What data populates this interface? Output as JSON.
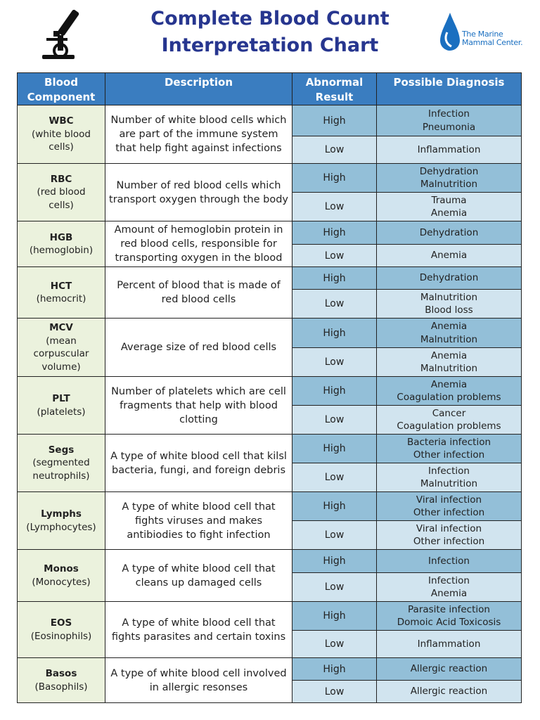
{
  "header": {
    "title_lines": [
      "Complete Blood Count",
      "Interpretation Chart"
    ],
    "logo_lines": [
      "The Marine",
      "Mammal Center."
    ]
  },
  "table": {
    "columns": [
      "Blood Component",
      "Description",
      "Abnormal Result",
      "Possible Diagnosis"
    ],
    "rows": [
      {
        "name": "WBC",
        "detail": "(white blood cells)",
        "description": "Number of white blood cells which are part of the immune system that help fight against infections",
        "results": [
          {
            "result": "High",
            "diagnosis": [
              "Infection",
              "Pneumonia"
            ]
          },
          {
            "result": "Low",
            "diagnosis": [
              "Inflammation"
            ]
          }
        ]
      },
      {
        "name": "RBC",
        "detail": "(red blood cells)",
        "description": "Number of red blood cells which transport oxygen through the body",
        "results": [
          {
            "result": "High",
            "diagnosis": [
              "Dehydration",
              "Malnutrition"
            ]
          },
          {
            "result": "Low",
            "diagnosis": [
              "Trauma",
              "Anemia"
            ]
          }
        ]
      },
      {
        "name": "HGB",
        "detail": "(hemoglobin)",
        "description": "Amount of hemoglobin protein in red blood cells, responsible for transporting oxygen in the blood",
        "results": [
          {
            "result": "High",
            "diagnosis": [
              "Dehydration"
            ]
          },
          {
            "result": "Low",
            "diagnosis": [
              "Anemia"
            ]
          }
        ]
      },
      {
        "name": "HCT",
        "detail": "(hemocrit)",
        "description": "Percent of blood that is made of red blood cells",
        "results": [
          {
            "result": "High",
            "diagnosis": [
              "Dehydration"
            ]
          },
          {
            "result": "Low",
            "diagnosis": [
              "Malnutrition",
              "Blood loss"
            ]
          }
        ]
      },
      {
        "name": "MCV",
        "detail": "(mean corpuscular volume)",
        "description": "Average size of red blood cells",
        "results": [
          {
            "result": "High",
            "diagnosis": [
              "Anemia",
              "Malnutrition"
            ]
          },
          {
            "result": "Low",
            "diagnosis": [
              "Anemia",
              "Malnutrition"
            ]
          }
        ]
      },
      {
        "name": "PLT",
        "detail": "(platelets)",
        "description": "Number of platelets which are cell fragments that help with blood clotting",
        "results": [
          {
            "result": "High",
            "diagnosis": [
              "Anemia",
              "Coagulation problems"
            ]
          },
          {
            "result": "Low",
            "diagnosis": [
              "Cancer",
              "Coagulation problems"
            ]
          }
        ]
      },
      {
        "name": "Segs",
        "detail": "(segmented neutrophils)",
        "description": "A type of white blood cell that kilsl bacteria, fungi, and foreign debris",
        "results": [
          {
            "result": "High",
            "diagnosis": [
              "Bacteria infection",
              "Other infection"
            ]
          },
          {
            "result": "Low",
            "diagnosis": [
              "Infection",
              "Malnutrition"
            ]
          }
        ]
      },
      {
        "name": "Lymphs",
        "detail": "(Lymphocytes)",
        "description": "A type of white blood cell that fights viruses and makes antibiodies to fight infection",
        "results": [
          {
            "result": "High",
            "diagnosis": [
              "Viral infection",
              "Other infection"
            ]
          },
          {
            "result": "Low",
            "diagnosis": [
              "Viral infection",
              "Other infection"
            ]
          }
        ]
      },
      {
        "name": "Monos",
        "detail": "(Monocytes)",
        "description": "A type of white blood cell that cleans up damaged cells",
        "results": [
          {
            "result": "High",
            "diagnosis": [
              "Infection"
            ]
          },
          {
            "result": "Low",
            "diagnosis": [
              "Infection",
              "Anemia"
            ]
          }
        ]
      },
      {
        "name": "EOS",
        "detail": "(Eosinophils)",
        "description": "A type of white blood cell that fights parasites and certain toxins",
        "results": [
          {
            "result": "High",
            "diagnosis": [
              "Parasite infection",
              "Domoic Acid Toxicosis"
            ]
          },
          {
            "result": "Low",
            "diagnosis": [
              "Inflammation"
            ]
          }
        ]
      },
      {
        "name": "Basos",
        "detail": "(Basophils)",
        "description": "A type of white blood cell involved in allergic resonses",
        "results": [
          {
            "result": "High",
            "diagnosis": [
              "Allergic reaction"
            ]
          },
          {
            "result": "Low",
            "diagnosis": [
              "Allergic reaction"
            ]
          }
        ]
      }
    ]
  }
}
